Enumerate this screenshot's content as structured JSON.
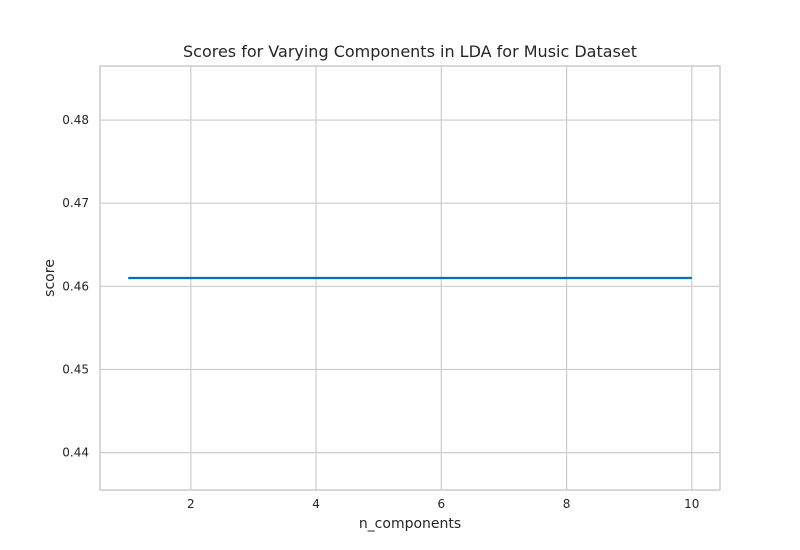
{
  "chart_data": {
    "type": "line",
    "title": "Scores for Varying Components in LDA for Music Dataset",
    "xlabel": "n_components",
    "ylabel": "score",
    "x": [
      1,
      2,
      3,
      4,
      5,
      6,
      7,
      8,
      9,
      10
    ],
    "series": [
      {
        "values": [
          0.461,
          0.461,
          0.461,
          0.461,
          0.461,
          0.461,
          0.461,
          0.461,
          0.461,
          0.461
        ],
        "color": "#0072b2"
      }
    ],
    "xlim": [
      0.55,
      10.45
    ],
    "ylim": [
      0.4355,
      0.4865
    ],
    "xticks": [
      2,
      4,
      6,
      8,
      10
    ],
    "xtick_labels": [
      "2",
      "4",
      "6",
      "8",
      "10"
    ],
    "yticks": [
      0.44,
      0.45,
      0.46,
      0.47,
      0.48
    ],
    "ytick_labels": [
      "0.44",
      "0.45",
      "0.46",
      "0.47",
      "0.48"
    ],
    "grid": true,
    "legend": false
  }
}
